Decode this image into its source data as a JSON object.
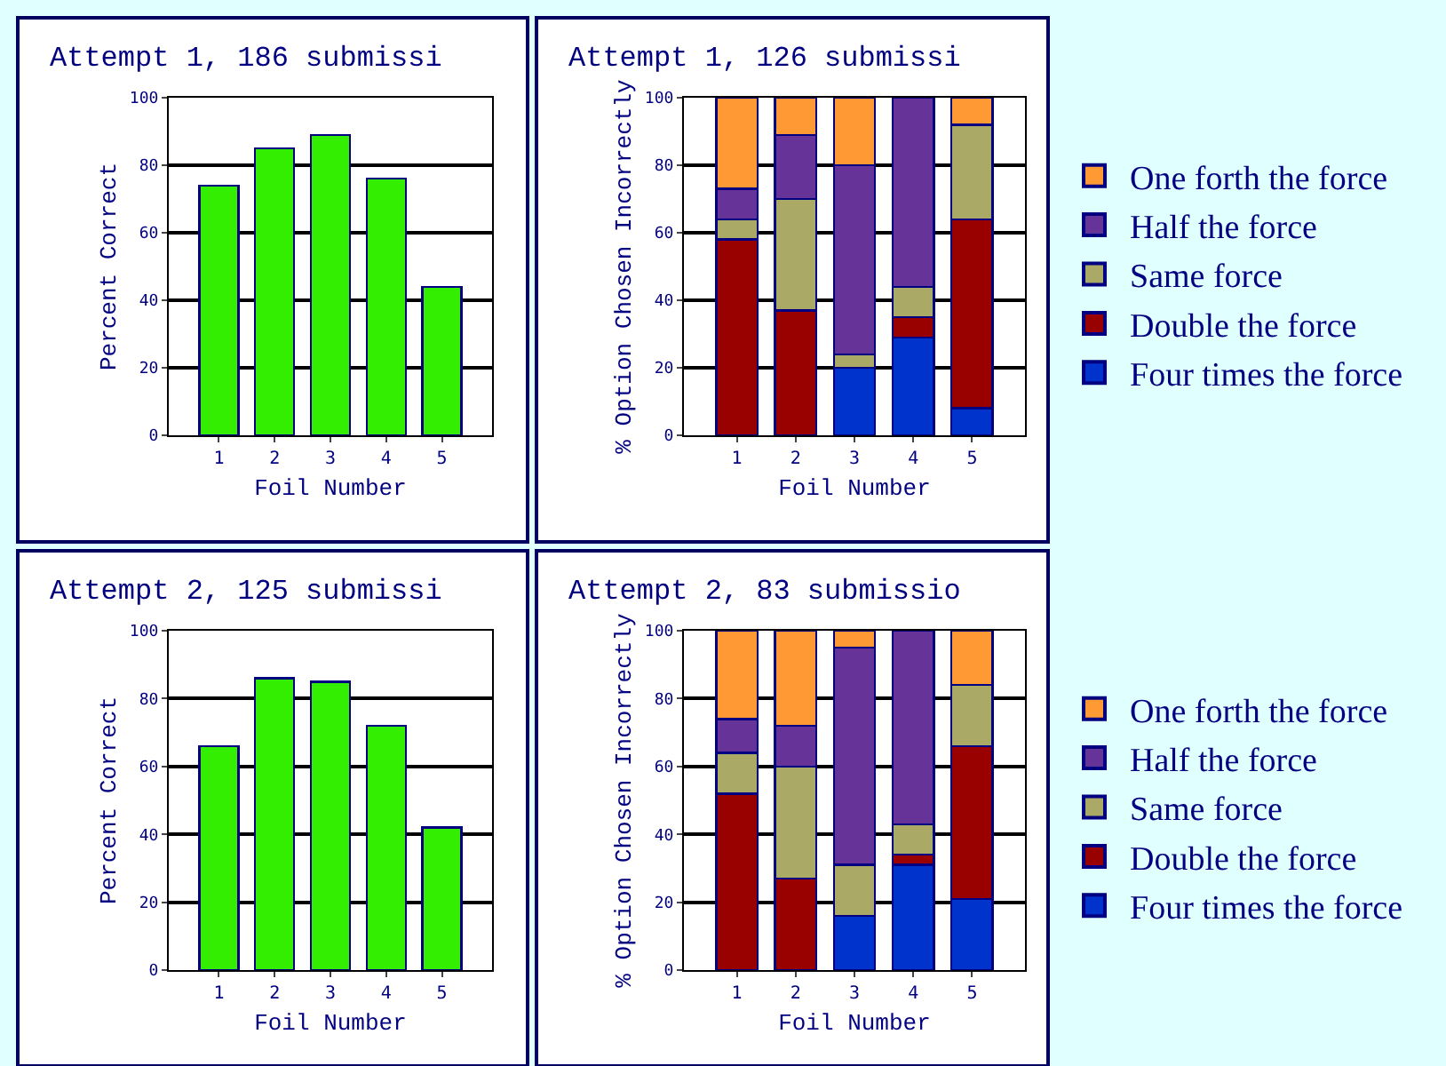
{
  "chart_data": [
    {
      "type": "bar",
      "title": "Attempt 1, 186 submissi",
      "xlabel": "Foil Number",
      "ylabel": "Percent Correct",
      "categories": [
        "1",
        "2",
        "3",
        "4",
        "5"
      ],
      "ylim": [
        0,
        100
      ],
      "yticks": [
        0,
        20,
        40,
        60,
        80,
        100
      ],
      "grid": "y",
      "legend": false,
      "series": [
        {
          "color": "#33ee00",
          "values": [
            74,
            85,
            89,
            76,
            44
          ]
        }
      ]
    },
    {
      "type": "bar",
      "title": "Attempt 1, 126 submissi",
      "xlabel": "Foil Number",
      "ylabel": "% Option Chosen Incorrectly",
      "categories": [
        "1",
        "2",
        "3",
        "4",
        "5"
      ],
      "ylim": [
        0,
        100
      ],
      "yticks": [
        0,
        20,
        40,
        60,
        80,
        100
      ],
      "grid": "y",
      "stacked": true,
      "legend": "right",
      "series": [
        {
          "name": "Four times the force",
          "color": "#0033cc",
          "values": [
            0,
            0,
            20,
            29,
            8
          ]
        },
        {
          "name": "Double the force",
          "color": "#990000",
          "values": [
            58,
            37,
            0,
            6,
            56
          ]
        },
        {
          "name": "Same force",
          "color": "#aaaa66",
          "values": [
            6,
            33,
            4,
            9,
            28
          ]
        },
        {
          "name": "Half the force",
          "color": "#663399",
          "values": [
            9,
            19,
            56,
            56,
            0
          ]
        },
        {
          "name": "One forth the force",
          "color": "#ff9933",
          "values": [
            27,
            11,
            20,
            0,
            8
          ]
        }
      ]
    },
    {
      "type": "bar",
      "title": "Attempt 2, 125 submissi",
      "xlabel": "Foil Number",
      "ylabel": "Percent Correct",
      "categories": [
        "1",
        "2",
        "3",
        "4",
        "5"
      ],
      "ylim": [
        0,
        100
      ],
      "yticks": [
        0,
        20,
        40,
        60,
        80,
        100
      ],
      "grid": "y",
      "legend": false,
      "series": [
        {
          "color": "#33ee00",
          "values": [
            66,
            86,
            85,
            72,
            42
          ]
        }
      ]
    },
    {
      "type": "bar",
      "title": "Attempt 2, 83 submissio",
      "xlabel": "Foil Number",
      "ylabel": "% Option Chosen Incorrectly",
      "categories": [
        "1",
        "2",
        "3",
        "4",
        "5"
      ],
      "ylim": [
        0,
        100
      ],
      "yticks": [
        0,
        20,
        40,
        60,
        80,
        100
      ],
      "grid": "y",
      "stacked": true,
      "legend": "right",
      "series": [
        {
          "name": "Four times the force",
          "color": "#0033cc",
          "values": [
            0,
            0,
            16,
            31,
            21
          ]
        },
        {
          "name": "Double the force",
          "color": "#990000",
          "values": [
            52,
            27,
            0,
            3,
            45
          ]
        },
        {
          "name": "Same force",
          "color": "#aaaa66",
          "values": [
            12,
            33,
            15,
            9,
            18
          ]
        },
        {
          "name": "Half the force",
          "color": "#663399",
          "values": [
            10,
            12,
            64,
            57,
            0
          ]
        },
        {
          "name": "One forth the force",
          "color": "#ff9933",
          "values": [
            26,
            28,
            5,
            0,
            16
          ]
        }
      ]
    }
  ]
}
